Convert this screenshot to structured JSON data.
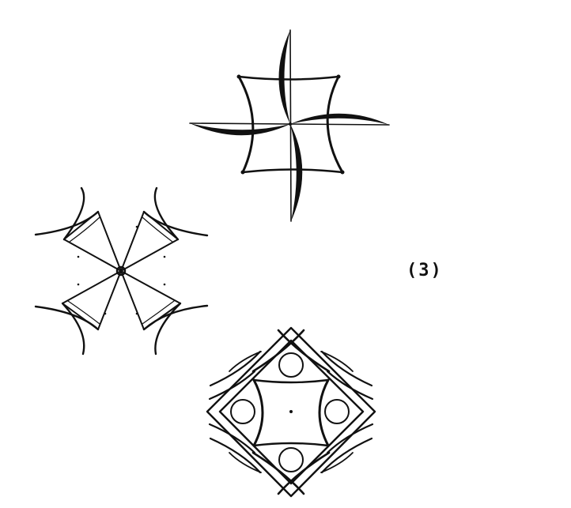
{
  "figure_label": "(3)",
  "colors": {
    "ink": "#111111",
    "background": "#ffffff"
  },
  "figures": [
    {
      "name": "pinwheel-square-figure",
      "description_visible": ""
    },
    {
      "name": "four-petal-triangle-figure",
      "description_visible": ""
    },
    {
      "name": "nested-diamond-circles-figure",
      "description_visible": ""
    }
  ]
}
